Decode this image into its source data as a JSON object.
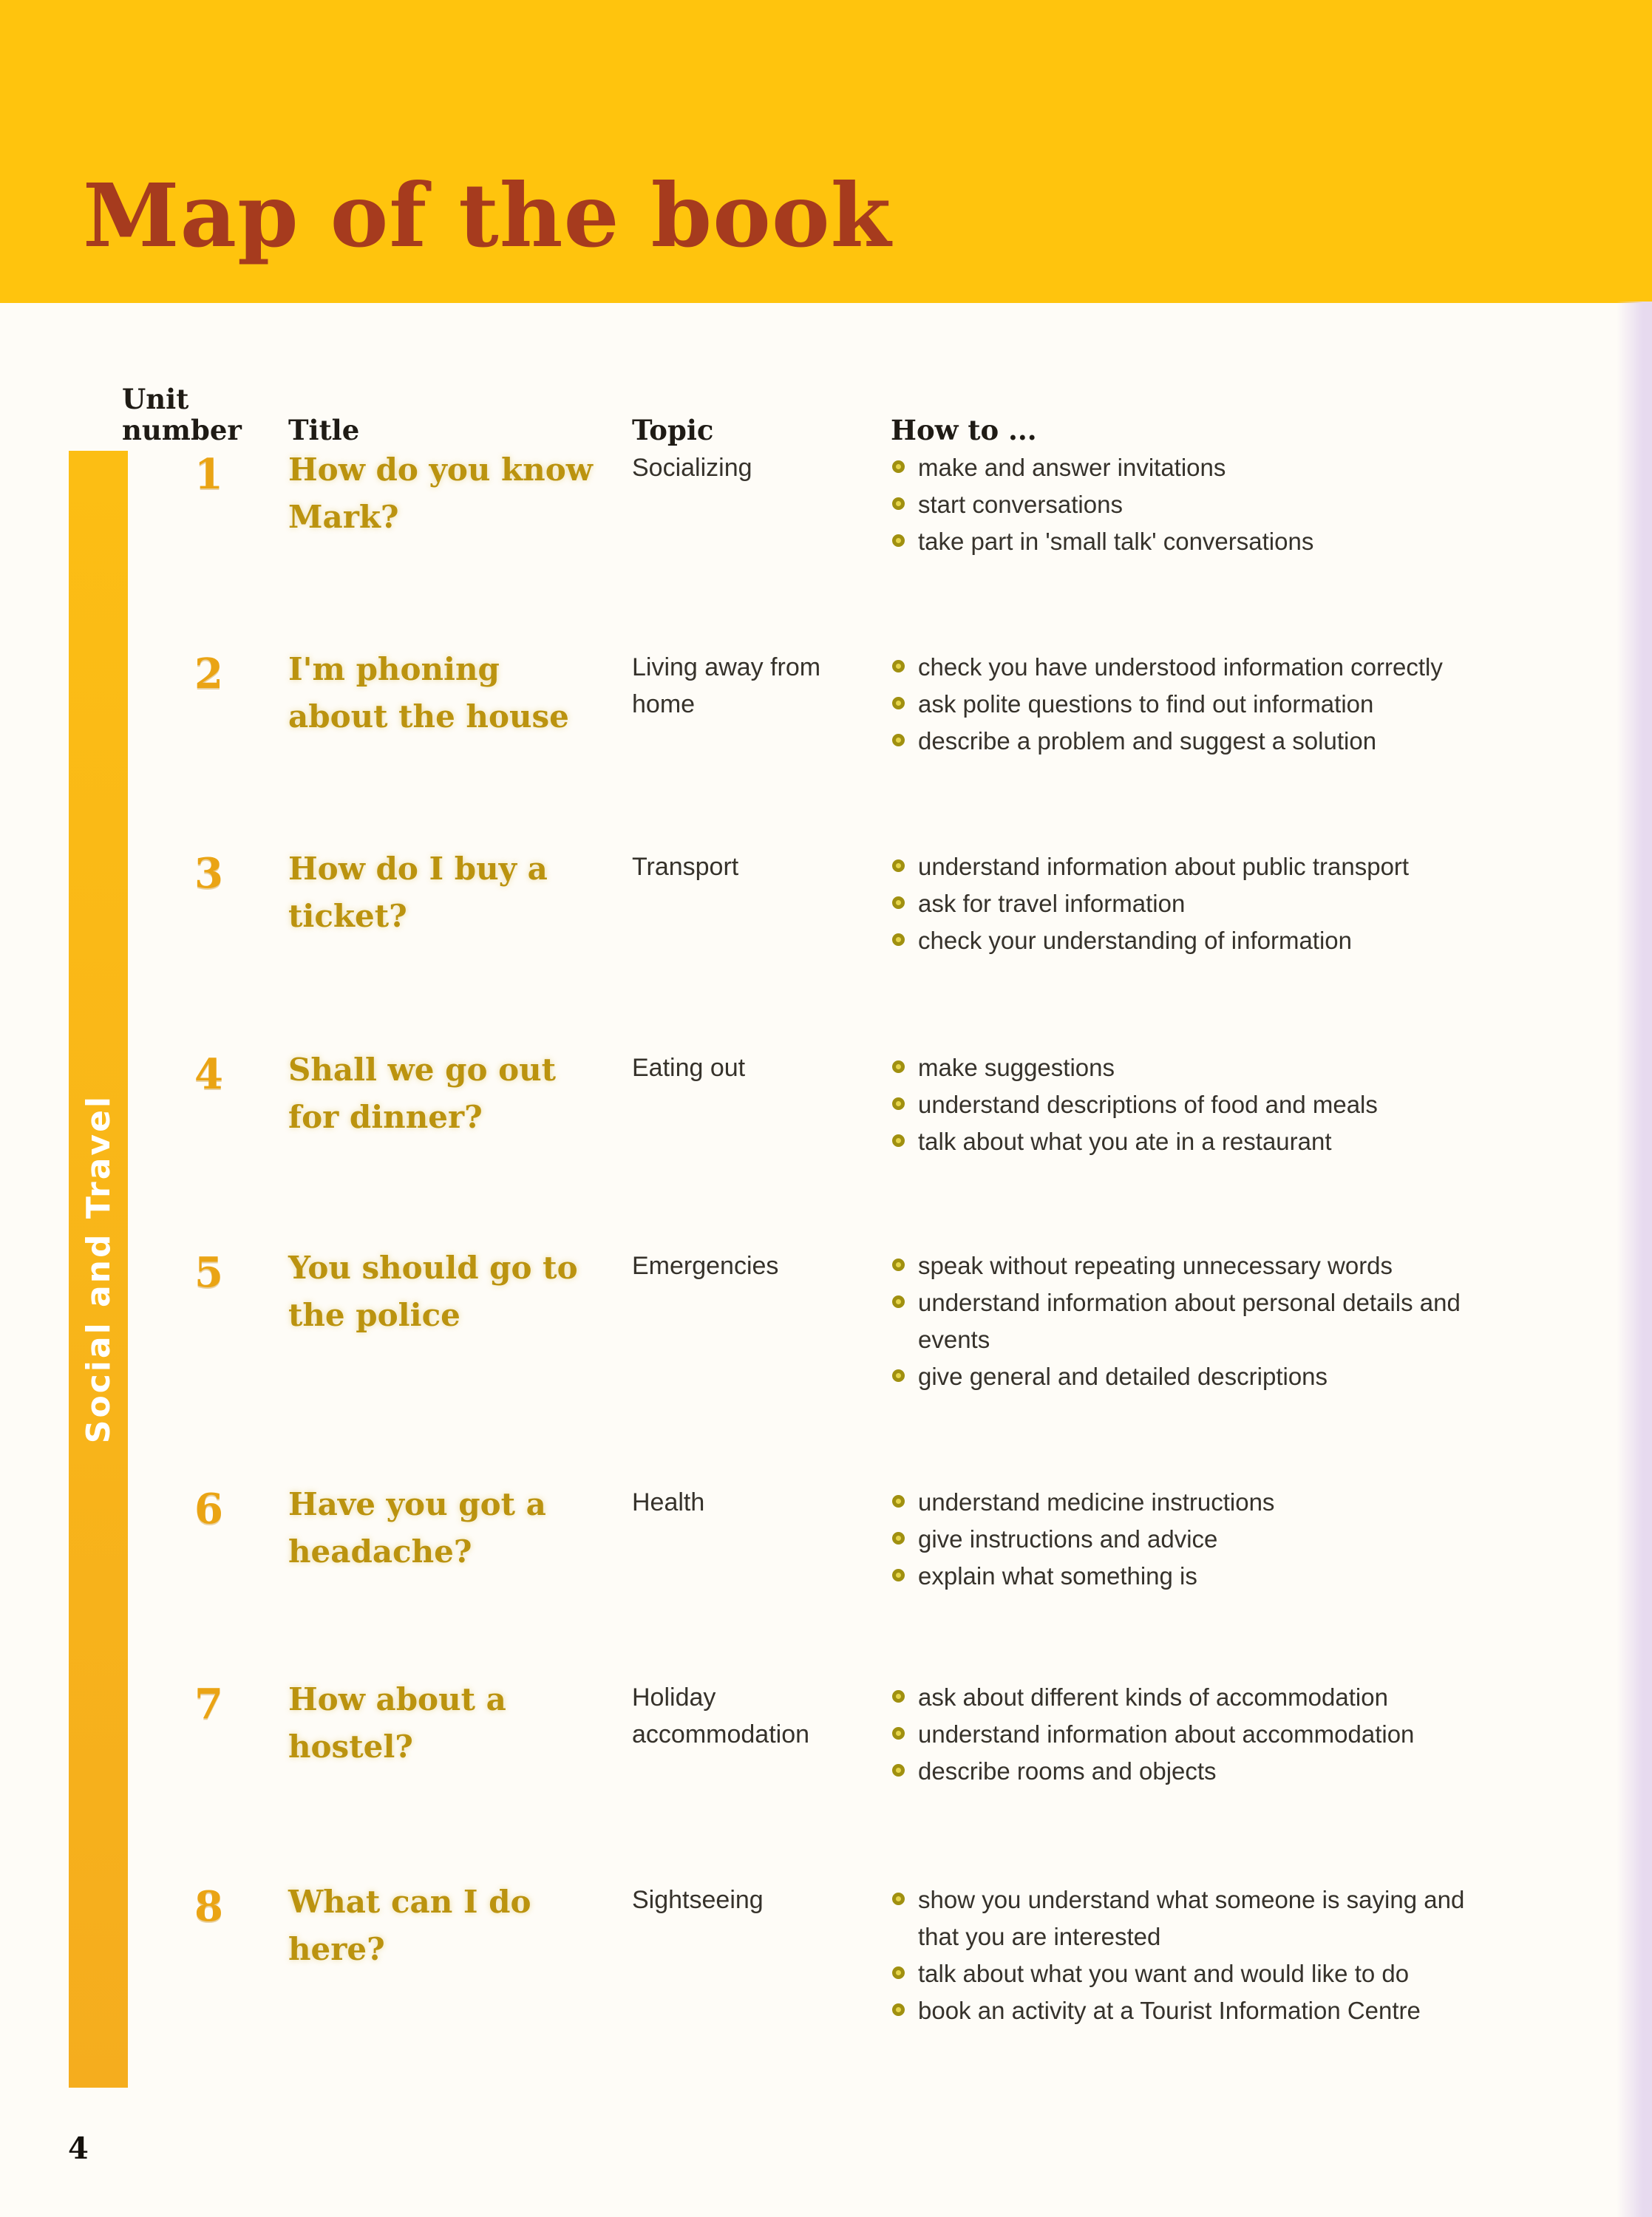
{
  "page": {
    "title": "Map of the book",
    "section_label": "Social and Travel",
    "page_number": "4"
  },
  "colors": {
    "band": "#ffc40d",
    "sidebar": "#f5ad1e",
    "title": "#a63b1e",
    "unit_number": "#eaa414",
    "unit_title": "#bb930f",
    "bullet": "#a09010"
  },
  "table": {
    "headers": {
      "unit": "Unit number",
      "title": "Title",
      "topic": "Topic",
      "how_to": "How to ..."
    },
    "rows": [
      {
        "number": "1",
        "title": "How do you know Mark?",
        "topic": "Socializing",
        "how_to": [
          "make and answer invitations",
          "start conversations",
          "take part in 'small talk' conversations"
        ]
      },
      {
        "number": "2",
        "title": "I'm phoning about the house",
        "topic": "Living away from home",
        "how_to": [
          "check you have understood information correctly",
          "ask polite questions to find out information",
          "describe a problem and suggest a solution"
        ]
      },
      {
        "number": "3",
        "title": "How do I buy a ticket?",
        "topic": "Transport",
        "how_to": [
          "understand information about public transport",
          "ask for travel information",
          "check your understanding of information"
        ]
      },
      {
        "number": "4",
        "title": "Shall we go out for dinner?",
        "topic": "Eating out",
        "how_to": [
          "make suggestions",
          "understand descriptions of food and meals",
          "talk about what you ate in a restaurant"
        ]
      },
      {
        "number": "5",
        "title": "You should go to the police",
        "topic": "Emergencies",
        "how_to": [
          "speak without repeating unnecessary words",
          "understand information about personal details and events",
          "give general and detailed descriptions"
        ]
      },
      {
        "number": "6",
        "title": "Have you got a headache?",
        "topic": "Health",
        "how_to": [
          "understand medicine instructions",
          "give instructions and advice",
          "explain what something is"
        ]
      },
      {
        "number": "7",
        "title": "How about a hostel?",
        "topic": "Holiday accommodation",
        "how_to": [
          "ask about different kinds of accommodation",
          "understand information about accommodation",
          "describe rooms and objects"
        ]
      },
      {
        "number": "8",
        "title": "What can I do here?",
        "topic": "Sightseeing",
        "how_to": [
          "show you understand what someone is saying and that you are interested",
          "talk about what you want and would like to do",
          "book an activity at a Tourist Information Centre"
        ]
      }
    ]
  }
}
